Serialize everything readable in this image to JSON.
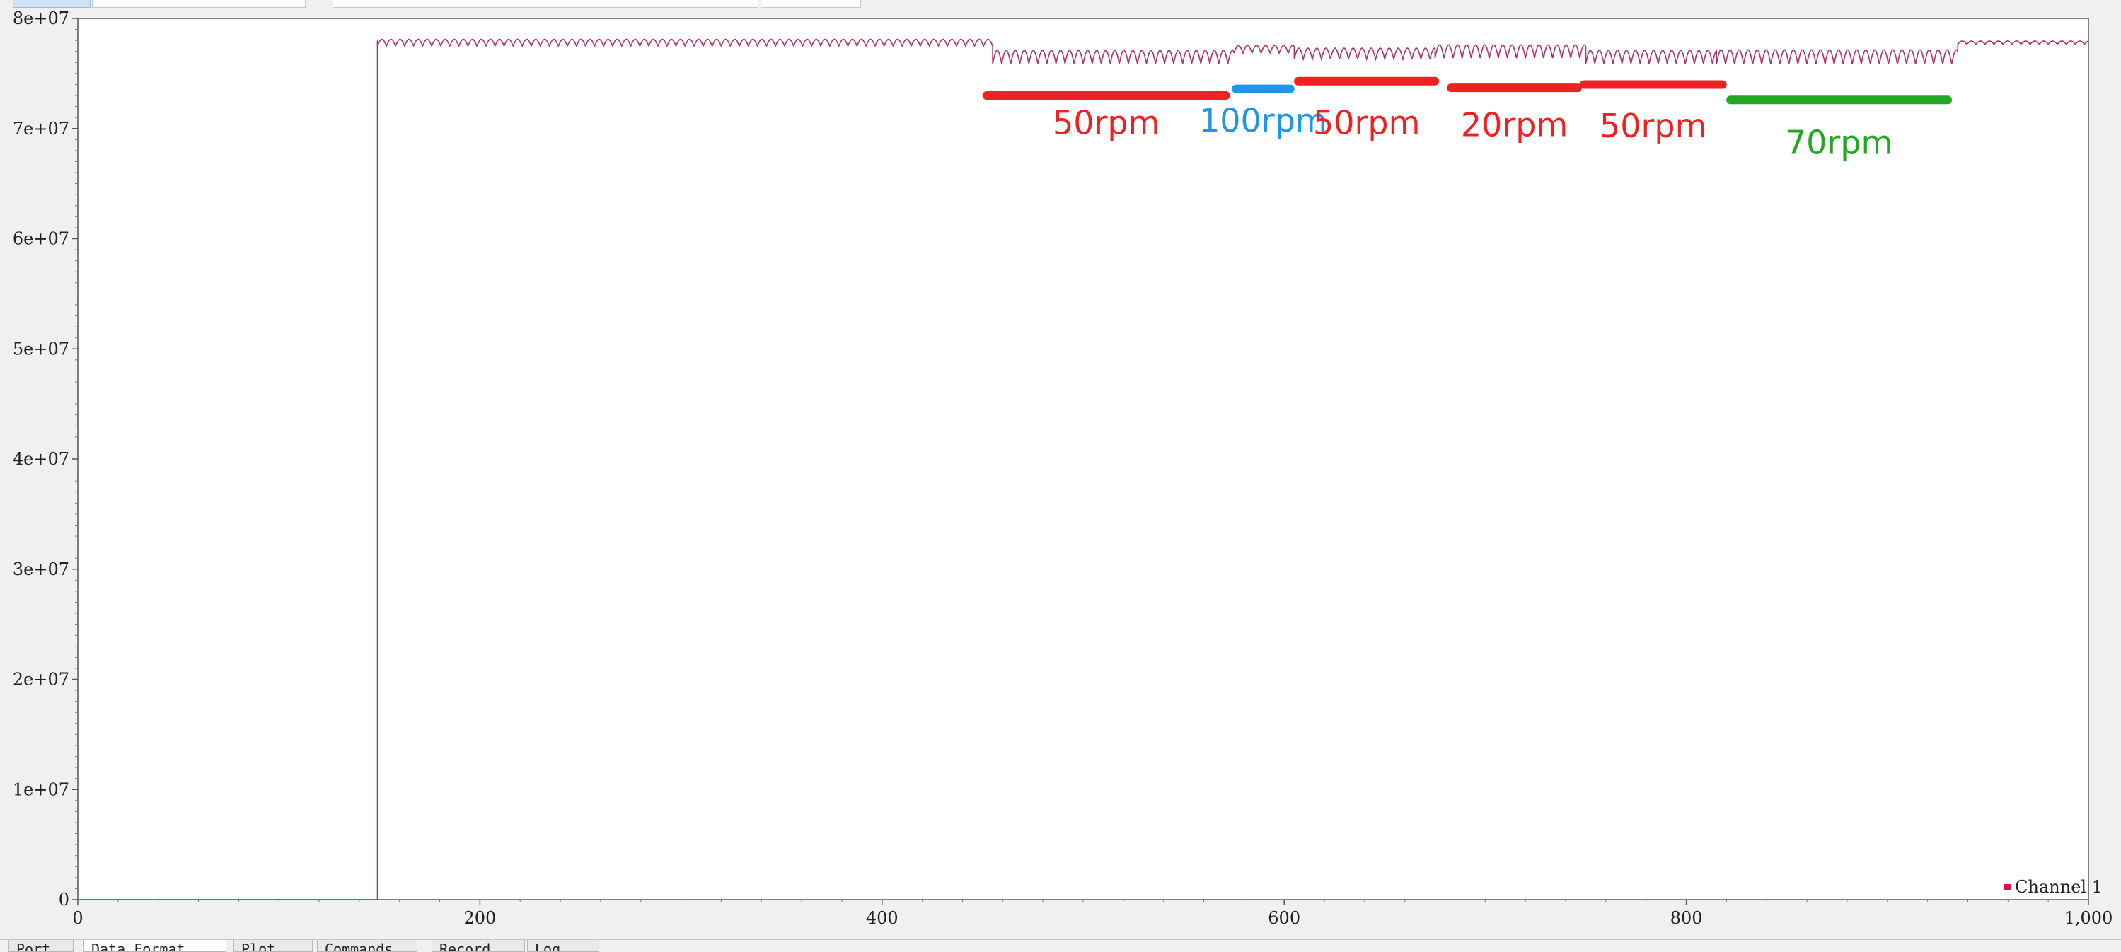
{
  "tabs_bottom": [
    "Port",
    "Data Format",
    "Plot",
    "Commands",
    "Record",
    "Log"
  ],
  "colors": {
    "series": "#b0306c",
    "red": "#ee2222",
    "blue": "#2196e8",
    "green": "#22a822",
    "legend_swatch": "#e01050"
  },
  "chart_data": {
    "type": "line",
    "title": "",
    "xlabel": "",
    "ylabel": "",
    "xlim": [
      0,
      1000
    ],
    "ylim": [
      0,
      80000000
    ],
    "x_ticks": [
      "0",
      "200",
      "400",
      "600",
      "800",
      "1,000"
    ],
    "y_ticks": [
      "0",
      "1e+07",
      "2e+07",
      "3e+07",
      "4e+07",
      "5e+07",
      "6e+07",
      "7e+07",
      "8e+07"
    ],
    "grid": false,
    "legend": "bottom-right",
    "series": [
      {
        "name": "Channel 1",
        "color": "#b0306c",
        "step_x": 149,
        "values_before_step": 0,
        "baseline_after_step": 78000000,
        "segments": [
          {
            "x": [
              149,
              455
            ],
            "mean": 77800000,
            "ripple": 600000
          },
          {
            "x": [
              455,
              575
            ],
            "mean": 76500000,
            "ripple": 1200000
          },
          {
            "x": [
              575,
              605
            ],
            "mean": 77200000,
            "ripple": 700000
          },
          {
            "x": [
              605,
              675
            ],
            "mean": 76800000,
            "ripple": 1000000
          },
          {
            "x": [
              675,
              750
            ],
            "mean": 77000000,
            "ripple": 1200000
          },
          {
            "x": [
              750,
              815
            ],
            "mean": 76500000,
            "ripple": 1200000
          },
          {
            "x": [
              815,
              935
            ],
            "mean": 76500000,
            "ripple": 1300000
          },
          {
            "x": [
              935,
              1000
            ],
            "mean": 77800000,
            "ripple": 300000
          }
        ]
      }
    ],
    "annotations": [
      {
        "label": "50rpm",
        "color": "red",
        "x_range": [
          452,
          571
        ],
        "bar_y": 73000000,
        "label_y": 69500000
      },
      {
        "label": "100rpm",
        "color": "blue",
        "x_range": [
          576,
          603
        ],
        "bar_y": 73600000,
        "label_y": 69700000
      },
      {
        "label": "50rpm",
        "color": "red",
        "x_range": [
          607,
          675
        ],
        "bar_y": 74300000,
        "label_y": 69500000
      },
      {
        "label": "20rpm",
        "color": "red",
        "x_range": [
          683,
          746
        ],
        "bar_y": 73700000,
        "label_y": 69300000
      },
      {
        "label": "50rpm",
        "color": "red",
        "x_range": [
          749,
          818
        ],
        "bar_y": 74000000,
        "label_y": 69200000
      },
      {
        "label": "70rpm",
        "color": "green",
        "x_range": [
          822,
          930
        ],
        "bar_y": 72600000,
        "label_y": 67700000
      }
    ]
  }
}
